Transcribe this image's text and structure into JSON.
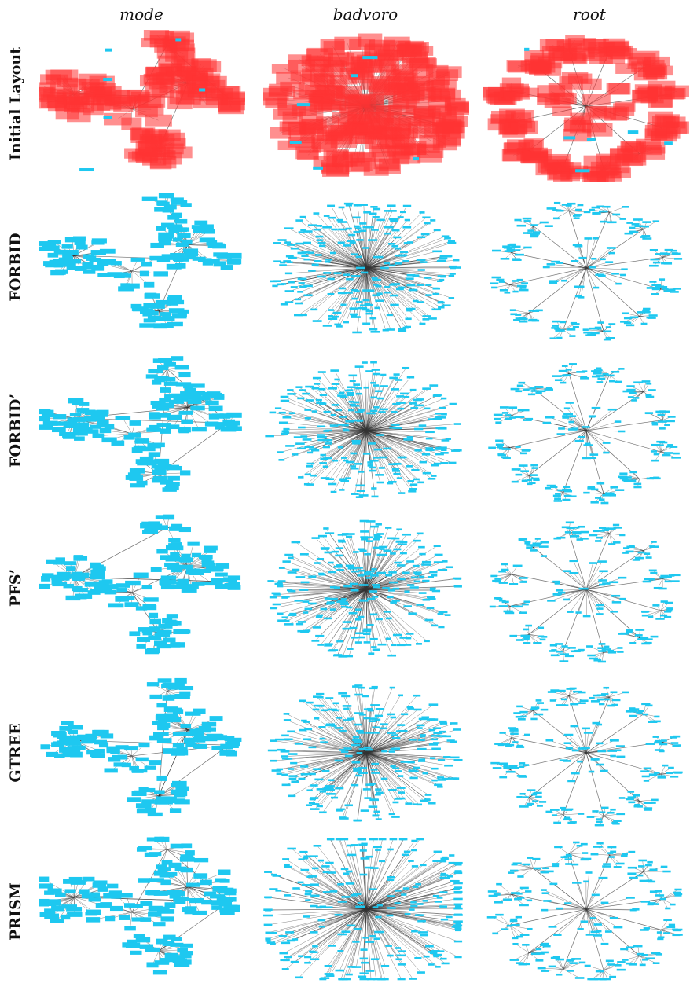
{
  "columns": [
    "mode",
    "badvoro",
    "root"
  ],
  "rows": [
    "Initial Layout",
    "FORBID",
    "FORBID’",
    "PFS’",
    "GTREE",
    "PRISM"
  ],
  "colors": {
    "overlap_node": "#ff3333",
    "node": "#1ec8f0",
    "edge": "#333333",
    "background": "#ffffff"
  }
}
